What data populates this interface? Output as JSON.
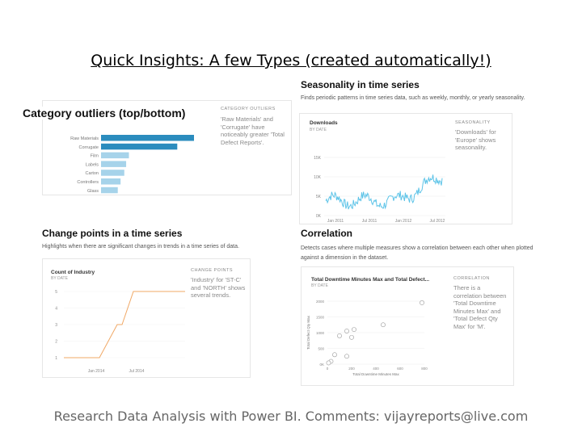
{
  "slide": {
    "title": "Quick Insights: A few Types (created automatically!)",
    "footer": "Research Data Analysis with Power BI. Comments: vijayreports@live.com"
  },
  "panels": {
    "category_outliers": {
      "heading": "Category outliers (top/bottom)",
      "side_label": "CATEGORY OUTLIERS",
      "side_text": "'Raw Materials' and 'Corrugate' have noticeably greater 'Total Defect Reports'."
    },
    "seasonality": {
      "heading": "Seasonality in time series",
      "description": "Finds periodic patterns in time series data, such as weekly, monthly, or yearly seasonality.",
      "chart_title": "Downloads",
      "chart_sub": "BY DATE",
      "side_label": "SEASONALITY",
      "side_text": "'Downloads' for 'Europe' shows seasonality."
    },
    "change_points": {
      "heading": "Change points in a time series",
      "description": "Highlights when there are significant changes in trends in a time series of data.",
      "chart_title": "Count of Industry",
      "chart_sub": "BY DATE",
      "side_label": "CHANGE POINTS",
      "side_text": "'Industry' for 'ST-C' and 'NORTH' shows several trends."
    },
    "correlation": {
      "heading": "Correlation",
      "description": "Detects cases where multiple measures show a correlation between each other when plotted against a dimension in the dataset.",
      "chart_title": "Total Downtime Minutes Max and Total Defect...",
      "chart_sub": "BY DATE",
      "side_label": "CORRELATION",
      "side_text": "There is a correlation between 'Total Downtime Minutes Max' and 'Total Defect Qty Max' for 'M'."
    }
  },
  "chart_data": [
    {
      "type": "bar",
      "orientation": "horizontal",
      "categories": [
        "Raw Materials",
        "Corrugate",
        "Film",
        "Labels",
        "Carton",
        "Controllers",
        "Glass"
      ],
      "values": [
        100,
        82,
        30,
        27,
        25,
        21,
        18
      ],
      "colors": [
        "#2b8cbe",
        "#2b8cbe",
        "#a6d3ea",
        "#a6d3ea",
        "#a6d3ea",
        "#a6d3ea",
        "#a6d3ea"
      ]
    },
    {
      "type": "line",
      "title": "Downloads",
      "y_ticks": [
        "15K",
        "10K",
        "5K",
        "0K"
      ],
      "x_ticks": [
        "Jan 2011",
        "Jul 2011",
        "Jan 2012",
        "Jul 2012"
      ],
      "ylim": [
        0,
        20000
      ],
      "color": "#5ec4e8"
    },
    {
      "type": "line",
      "title": "Count of Industry",
      "y_ticks": [
        "5",
        "4",
        "3",
        "2",
        "1"
      ],
      "x_ticks": [
        "Jan 2014",
        "Jul 2014"
      ],
      "ylim": [
        1,
        5
      ],
      "values": [
        1,
        1,
        1,
        3,
        3,
        5,
        5
      ],
      "color": "#f0a866"
    },
    {
      "type": "scatter",
      "title": "Total Downtime Minutes Max and Total Defect...",
      "xlabel": "Total Downtime Minutes Max",
      "ylabel": "Total Defect Qty Max",
      "y_ticks": [
        "2000",
        "1500",
        "1000",
        "500",
        "0K"
      ],
      "x_ticks": [
        "0",
        "200",
        "400",
        "600",
        "800"
      ],
      "xlim": [
        0,
        800
      ],
      "ylim": [
        0,
        2000
      ],
      "points": [
        [
          780,
          1950
        ],
        [
          460,
          1250
        ],
        [
          100,
          900
        ],
        [
          160,
          1050
        ],
        [
          220,
          1100
        ],
        [
          200,
          850
        ],
        [
          60,
          300
        ],
        [
          160,
          250
        ],
        [
          30,
          90
        ],
        [
          10,
          40
        ]
      ]
    }
  ]
}
